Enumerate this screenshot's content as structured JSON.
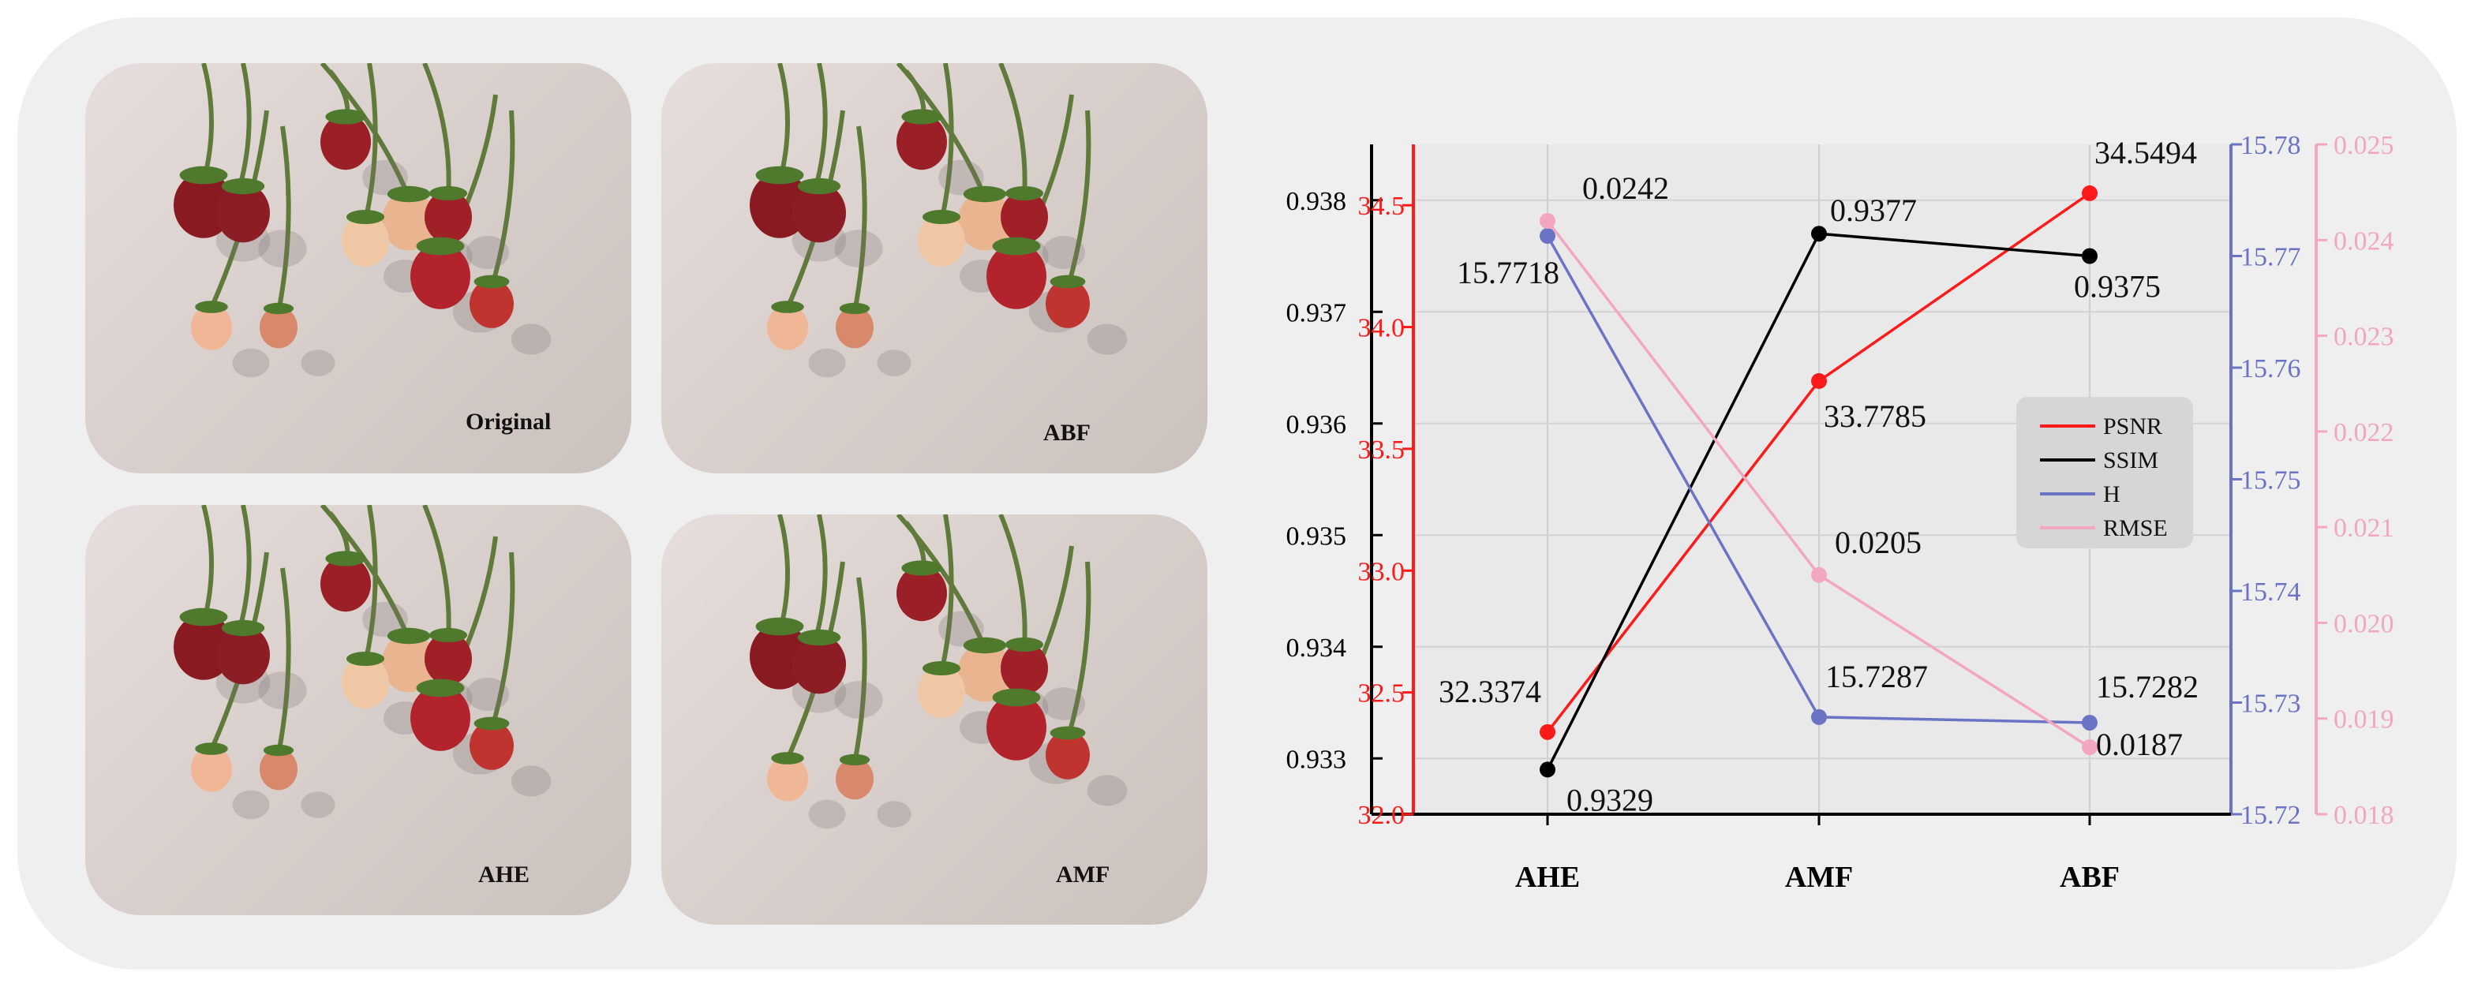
{
  "photos": [
    {
      "label": "Original"
    },
    {
      "label": "ABF"
    },
    {
      "label": "AHE"
    },
    {
      "label": "AMF"
    }
  ],
  "colors": {
    "psnr": "#ff1a1a",
    "ssim": "#000000",
    "h": "#6b74c4",
    "rmse": "#f3a6bf",
    "panel": "#efefef"
  },
  "chart_data": {
    "type": "line",
    "categories": [
      "AHE",
      "AMF",
      "ABF"
    ],
    "series": [
      {
        "name": "PSNR",
        "values": [
          32.3374,
          33.7785,
          34.5494
        ],
        "labels": [
          "32.3374",
          "33.7785",
          "34.5494"
        ],
        "axis": "left-red"
      },
      {
        "name": "SSIM",
        "values": [
          0.9329,
          0.9377,
          0.9375
        ],
        "labels": [
          "0.9329",
          "0.9377",
          "0.9375"
        ],
        "axis": "left-black"
      },
      {
        "name": "H",
        "values": [
          15.7718,
          15.7287,
          15.7282
        ],
        "labels": [
          "15.7718",
          "15.7287",
          "15.7282"
        ],
        "axis": "right-blue"
      },
      {
        "name": "RMSE",
        "values": [
          0.0242,
          0.0205,
          0.0187
        ],
        "labels": [
          "0.0242",
          "0.0205",
          "0.0187"
        ],
        "axis": "right-pink"
      }
    ],
    "axes": {
      "left_black": {
        "range": [
          0.9325,
          0.9385
        ],
        "ticks": [
          0.933,
          0.934,
          0.935,
          0.936,
          0.937,
          0.938
        ],
        "tick_labels": [
          "0.933",
          "0.934",
          "0.935",
          "0.936",
          "0.937",
          "0.938"
        ]
      },
      "left_red": {
        "range": [
          32.0,
          34.75
        ],
        "ticks": [
          32.0,
          32.5,
          33.0,
          33.5,
          34.0,
          34.5
        ],
        "tick_labels": [
          "32.0",
          "32.5",
          "33.0",
          "33.5",
          "34.0",
          "34.5"
        ]
      },
      "right_blue": {
        "range": [
          15.72,
          15.78
        ],
        "ticks": [
          15.72,
          15.73,
          15.74,
          15.75,
          15.76,
          15.77,
          15.78
        ],
        "tick_labels": [
          "15.72",
          "15.73",
          "15.74",
          "15.75",
          "15.76",
          "15.77",
          "15.78"
        ]
      },
      "right_pink": {
        "range": [
          0.018,
          0.025
        ],
        "ticks": [
          0.018,
          0.019,
          0.02,
          0.021,
          0.022,
          0.023,
          0.024,
          0.025
        ],
        "tick_labels": [
          "0.018",
          "0.019",
          "0.020",
          "0.021",
          "0.022",
          "0.023",
          "0.024",
          "0.025"
        ]
      }
    },
    "grid": true,
    "legend": {
      "position": "right",
      "entries": [
        "PSNR",
        "SSIM",
        "H",
        "RMSE"
      ]
    }
  }
}
